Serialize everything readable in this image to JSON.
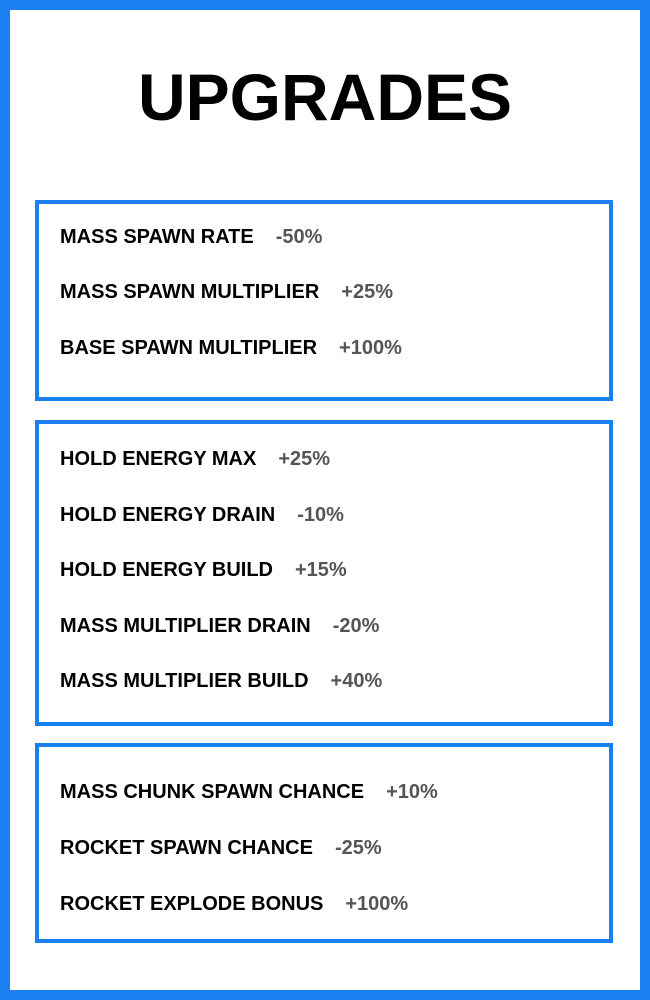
{
  "title": "UPGRADES",
  "colors": {
    "accent": "#1a7ff0",
    "label": "#000000",
    "value": "#555555"
  },
  "groups": [
    {
      "items": [
        {
          "label": "MASS SPAWN RATE",
          "value": "-50%"
        },
        {
          "label": "MASS SPAWN MULTIPLIER",
          "value": "+25%"
        },
        {
          "label": "BASE SPAWN MULTIPLIER",
          "value": "+100%"
        }
      ]
    },
    {
      "items": [
        {
          "label": "HOLD ENERGY MAX",
          "value": "+25%"
        },
        {
          "label": "HOLD ENERGY DRAIN",
          "value": "-10%"
        },
        {
          "label": "HOLD ENERGY BUILD",
          "value": "+15%"
        },
        {
          "label": "MASS MULTIPLIER DRAIN",
          "value": "-20%"
        },
        {
          "label": "MASS MULTIPLIER BUILD",
          "value": "+40%"
        }
      ]
    },
    {
      "items": [
        {
          "label": "MASS CHUNK SPAWN CHANCE",
          "value": "+10%"
        },
        {
          "label": "ROCKET SPAWN CHANCE",
          "value": "-25%"
        },
        {
          "label": "ROCKET EXPLODE BONUS",
          "value": "+100%"
        }
      ]
    }
  ]
}
